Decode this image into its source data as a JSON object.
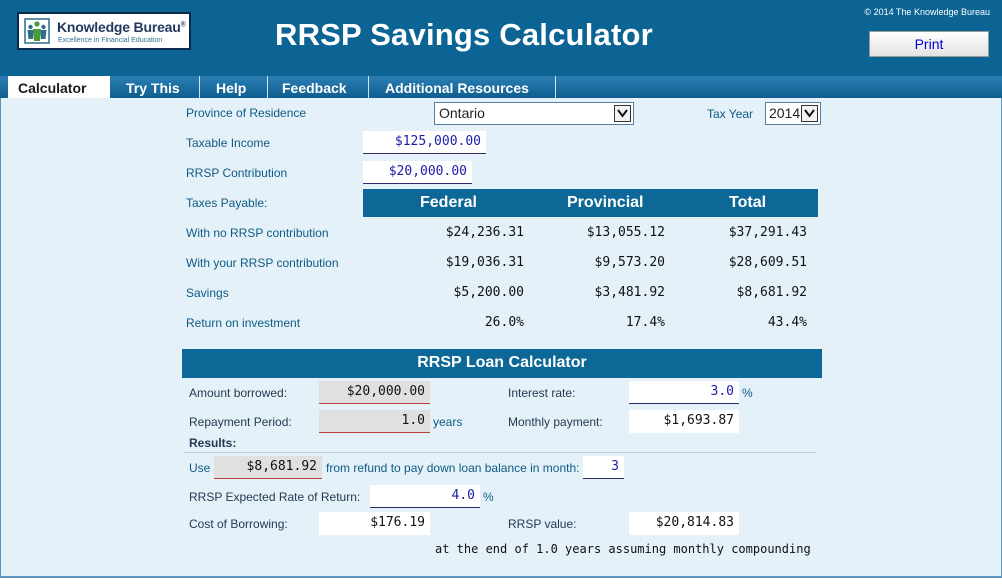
{
  "header": {
    "logo_name": "Knowledge Bureau",
    "logo_reg": "®",
    "logo_tagline": "Excellence in Financial Education",
    "title": "RRSP Savings Calculator",
    "copyright": "© 2014 The Knowledge Bureau",
    "print_label": "Print"
  },
  "tabs": [
    {
      "label": "Calculator",
      "active": true
    },
    {
      "label": "Try This"
    },
    {
      "label": "Help"
    },
    {
      "label": "Feedback"
    },
    {
      "label": "Additional Resources"
    }
  ],
  "inputs": {
    "province_label": "Province of Residence",
    "province_value": "Ontario",
    "tax_year_label": "Tax Year",
    "tax_year_value": "2014",
    "taxable_income_label": "Taxable Income",
    "taxable_income_value": "$125,000.00",
    "rrsp_contribution_label": "RRSP Contribution",
    "rrsp_contribution_value": "$20,000.00"
  },
  "taxes": {
    "section_label": "Taxes Payable:",
    "columns": [
      "Federal",
      "Provincial",
      "Total"
    ],
    "rows": [
      {
        "label": "With no RRSP contribution",
        "federal": "$24,236.31",
        "provincial": "$13,055.12",
        "total": "$37,291.43"
      },
      {
        "label": "With your RRSP contribution",
        "federal": "$19,036.31",
        "provincial": "$9,573.20",
        "total": "$28,609.51"
      },
      {
        "label": "Savings",
        "federal": "$5,200.00",
        "provincial": "$3,481.92",
        "total": "$8,681.92"
      },
      {
        "label": "Return on investment",
        "federal": "26.0%",
        "provincial": "17.4%",
        "total": "43.4%"
      }
    ]
  },
  "loan": {
    "title": "RRSP Loan Calculator",
    "amount_borrowed_label": "Amount borrowed:",
    "amount_borrowed_value": "$20,000.00",
    "interest_rate_label": "Interest rate:",
    "interest_rate_value": "3.0",
    "percent": "%",
    "repayment_label": "Repayment Period:",
    "repayment_value": "1.0",
    "years_unit": "years",
    "monthly_payment_label": "Monthly payment:",
    "monthly_payment_value": "$1,693.87",
    "results_label": "Results:",
    "use_label": "Use",
    "use_value": "$8,681.92",
    "use_suffix": "from refund to pay down loan balance in month:",
    "month_value": "3",
    "expected_return_label": "RRSP Expected Rate of Return:",
    "expected_return_value": "4.0",
    "cost_label": "Cost of Borrowing:",
    "cost_value": "$176.19",
    "rrsp_value_label": "RRSP value:",
    "rrsp_value_value": "$20,814.83",
    "footer_note": "at the end of 1.0 years assuming monthly compounding"
  },
  "colors": {
    "header_bg": "#0b6493",
    "panel_bg": "#e5f1f8",
    "label_blue": "#0e5a86",
    "input_text": "#1c1ca8"
  }
}
